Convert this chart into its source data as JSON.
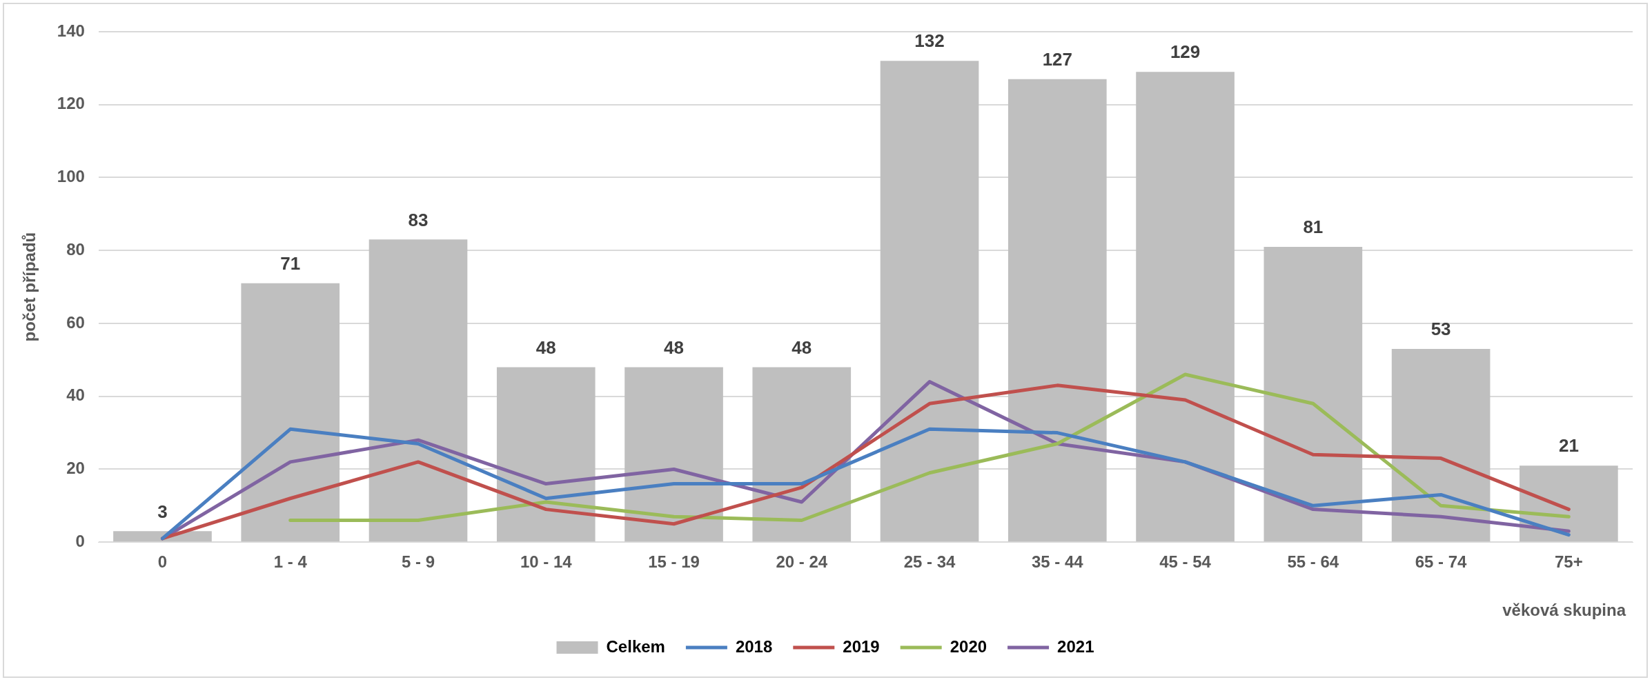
{
  "chart_data": {
    "type": "bar",
    "xlabel": "věková skupina",
    "ylabel": "počet případů",
    "categories": [
      "0",
      "1 - 4",
      "5 - 9",
      "10 - 14",
      "15 - 19",
      "20 - 24",
      "25 - 34",
      "35 - 44",
      "45 - 54",
      "55 - 64",
      "65 - 74",
      "75+"
    ],
    "ylim": [
      0,
      140
    ],
    "yticks": [
      0,
      20,
      40,
      60,
      80,
      100,
      120,
      140
    ],
    "grid": "y",
    "legend": "bottom",
    "marker": "none",
    "line_style": "solid",
    "series": [
      {
        "name": "Celkem",
        "color": "#bfbfbf",
        "values": [
          3,
          71,
          83,
          48,
          48,
          48,
          132,
          127,
          129,
          81,
          53,
          21
        ],
        "value_labels": [
          "3",
          "71",
          "83",
          "48",
          "48",
          "48",
          "132",
          "127",
          "129",
          "81",
          "53",
          "21"
        ]
      },
      {
        "name": "2018",
        "type": "line",
        "color": "#4a7fc1",
        "values": [
          1,
          31,
          27,
          12,
          16,
          16,
          31,
          30,
          22,
          10,
          13,
          2
        ]
      },
      {
        "name": "2019",
        "type": "line",
        "color": "#c0504d",
        "values": [
          1,
          12,
          22,
          9,
          5,
          15,
          38,
          43,
          39,
          24,
          23,
          9
        ]
      },
      {
        "name": "2020",
        "type": "line",
        "color": "#9bbb59",
        "values": [
          null,
          6,
          6,
          11,
          7,
          6,
          19,
          27,
          46,
          38,
          10,
          7
        ]
      },
      {
        "name": "2021",
        "type": "line",
        "color": "#8064a2",
        "values": [
          1,
          22,
          28,
          16,
          20,
          11,
          44,
          27,
          22,
          9,
          7,
          3
        ]
      }
    ]
  }
}
